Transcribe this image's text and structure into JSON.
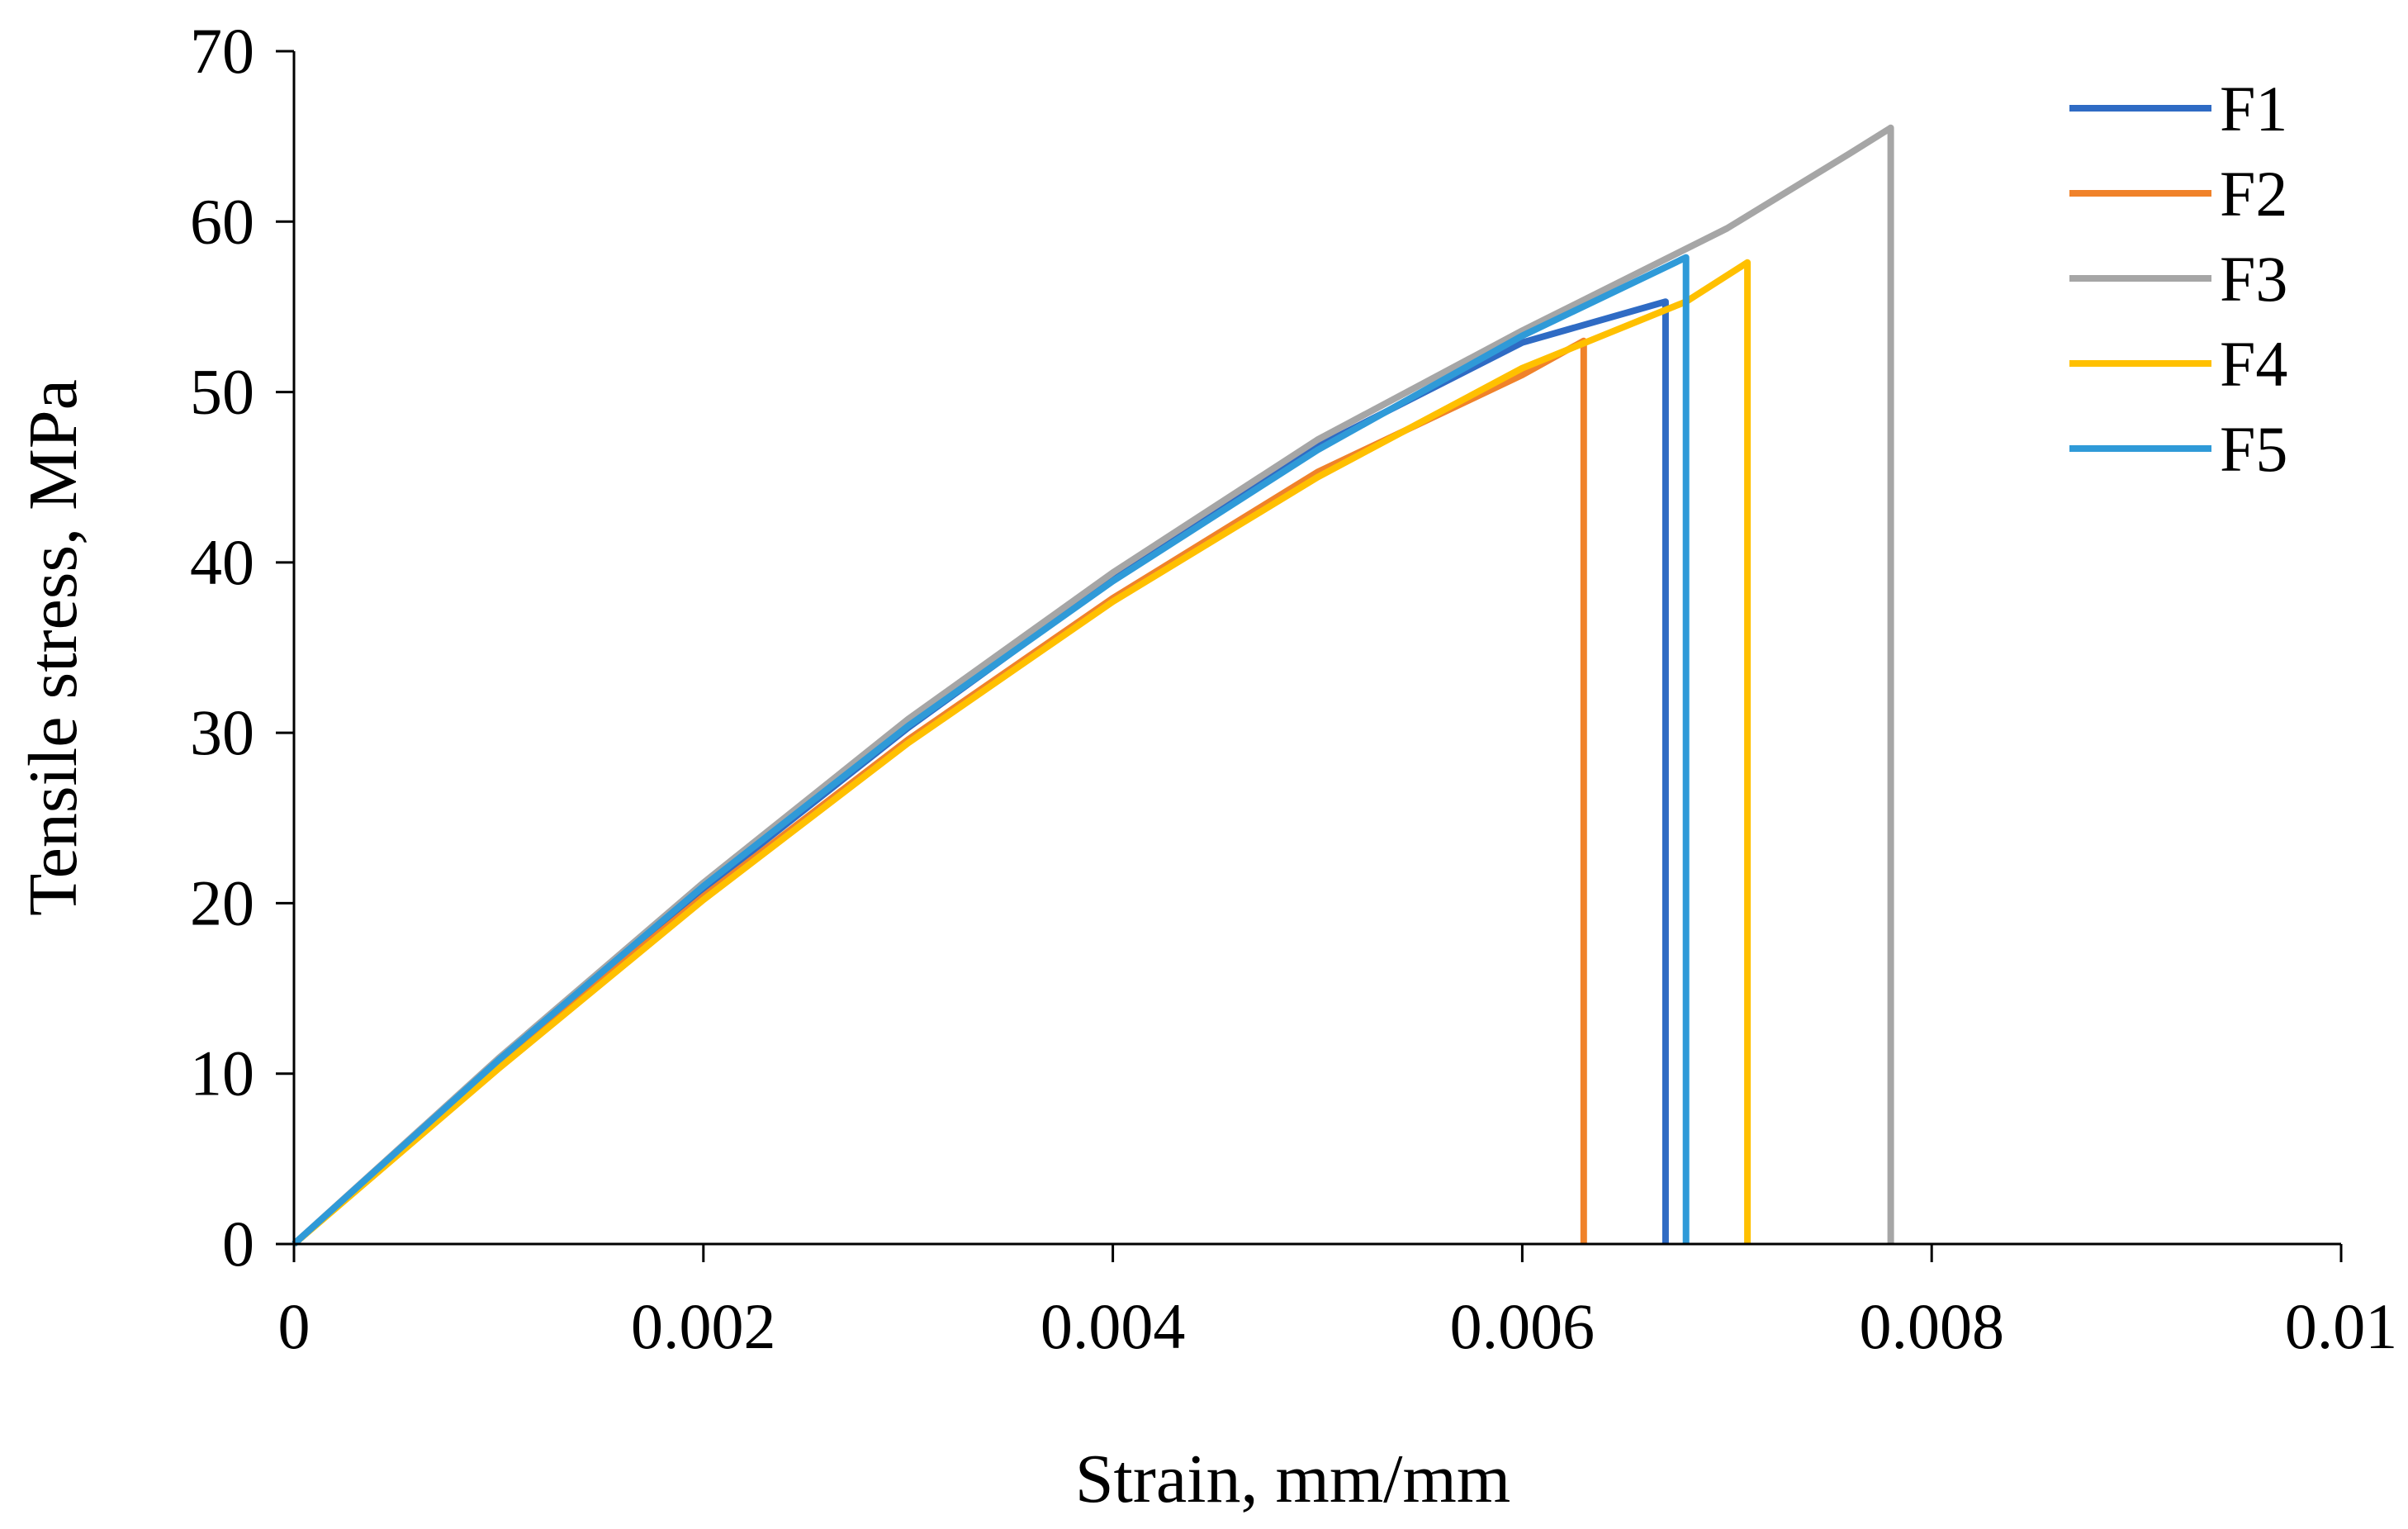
{
  "chart_data": {
    "type": "line",
    "title": "",
    "xlabel": "Strain, mm/mm",
    "ylabel": "Tensile stress, MPa",
    "xlim": [
      0,
      0.01
    ],
    "ylim": [
      0,
      70
    ],
    "xticks": [
      0,
      0.002,
      0.004,
      0.006,
      0.008,
      0.01
    ],
    "xtick_labels": [
      "0",
      "0.002",
      "0.004",
      "0.006",
      "0.008",
      "0.01"
    ],
    "yticks": [
      0,
      10,
      20,
      30,
      40,
      50,
      60,
      70
    ],
    "ytick_labels": [
      "0",
      "10",
      "20",
      "30",
      "40",
      "50",
      "60",
      "70"
    ],
    "grid": false,
    "legend_position": "top-right",
    "series": [
      {
        "name": "F1",
        "color": "#2F6BC4",
        "x": [
          0,
          0.001,
          0.002,
          0.003,
          0.004,
          0.005,
          0.006,
          0.0067,
          0.0067
        ],
        "y": [
          0,
          10.6,
          20.8,
          30.3,
          39.0,
          46.8,
          52.9,
          55.3,
          0
        ]
      },
      {
        "name": "F2",
        "color": "#F0822A",
        "x": [
          0,
          0.001,
          0.002,
          0.003,
          0.004,
          0.005,
          0.006,
          0.0063,
          0.0063
        ],
        "y": [
          0,
          10.5,
          20.4,
          29.6,
          37.9,
          45.3,
          51.0,
          53.0,
          0
        ]
      },
      {
        "name": "F3",
        "color": "#A6A6A6",
        "x": [
          0,
          0.001,
          0.002,
          0.003,
          0.004,
          0.005,
          0.006,
          0.007,
          0.0076,
          0.0078,
          0.0078
        ],
        "y": [
          0,
          10.9,
          21.2,
          30.8,
          39.4,
          47.2,
          53.6,
          59.6,
          64.0,
          65.5,
          0
        ]
      },
      {
        "name": "F4",
        "color": "#FFC000",
        "x": [
          0,
          0.001,
          0.002,
          0.003,
          0.004,
          0.005,
          0.006,
          0.0068,
          0.0071,
          0.0071
        ],
        "y": [
          0,
          10.3,
          20.2,
          29.4,
          37.7,
          45.0,
          51.4,
          55.3,
          57.6,
          0
        ]
      },
      {
        "name": "F5",
        "color": "#2F9AD8",
        "x": [
          0,
          0.001,
          0.002,
          0.003,
          0.004,
          0.005,
          0.006,
          0.0068,
          0.0068
        ],
        "y": [
          0,
          10.8,
          21.0,
          30.4,
          38.9,
          46.6,
          53.3,
          57.9,
          0
        ]
      }
    ]
  }
}
